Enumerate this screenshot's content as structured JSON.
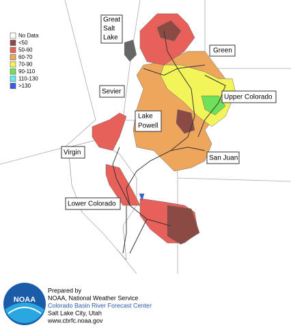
{
  "legend": {
    "items": [
      {
        "label": "No Data",
        "color": "#ffffff"
      },
      {
        "label": "<50",
        "color": "#8b4a44"
      },
      {
        "label": "50-60",
        "color": "#e8605a"
      },
      {
        "label": "60-70",
        "color": "#eea65c"
      },
      {
        "label": "70-90",
        "color": "#f3f35a"
      },
      {
        "label": "90-110",
        "color": "#6ee05a"
      },
      {
        "label": "110-130",
        "color": "#5ef0f0"
      },
      {
        "label": ">130",
        "color": "#3a5ae8"
      }
    ]
  },
  "labels": [
    {
      "lines": [
        "Great",
        "Salt",
        "Lake"
      ]
    },
    {
      "lines": [
        "Green"
      ]
    },
    {
      "lines": [
        "Upper Colorado"
      ]
    },
    {
      "lines": [
        "Sevier"
      ]
    },
    {
      "lines": [
        "Lake",
        "Powell"
      ]
    },
    {
      "lines": [
        "Virgin"
      ]
    },
    {
      "lines": [
        "San Juan"
      ]
    },
    {
      "lines": [
        "Lower Colorado"
      ]
    }
  ],
  "credits": {
    "lines": [
      "Prepared by",
      "NOAA, National Weather Service",
      "Colorado Basin River Forecast Center",
      "Salt Lake City, Utah",
      "www.cbrfc.noaa.gov"
    ]
  },
  "logo": {
    "text": "NOAA"
  }
}
